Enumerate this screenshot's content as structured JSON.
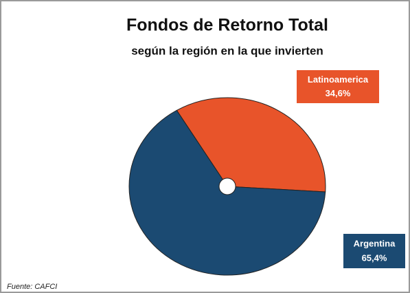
{
  "chart_data": {
    "type": "pie",
    "title": "Fondos de Retorno Total",
    "subtitle": "según la región en la que invierten",
    "categories": [
      "Latinoamerica",
      "Argentina"
    ],
    "values": [
      34.6,
      65.4
    ],
    "value_labels": [
      "34,6%",
      "65,4%"
    ],
    "colors": [
      "#e8542a",
      "#1b4a72"
    ],
    "source": "Fuente: CAFCI"
  }
}
